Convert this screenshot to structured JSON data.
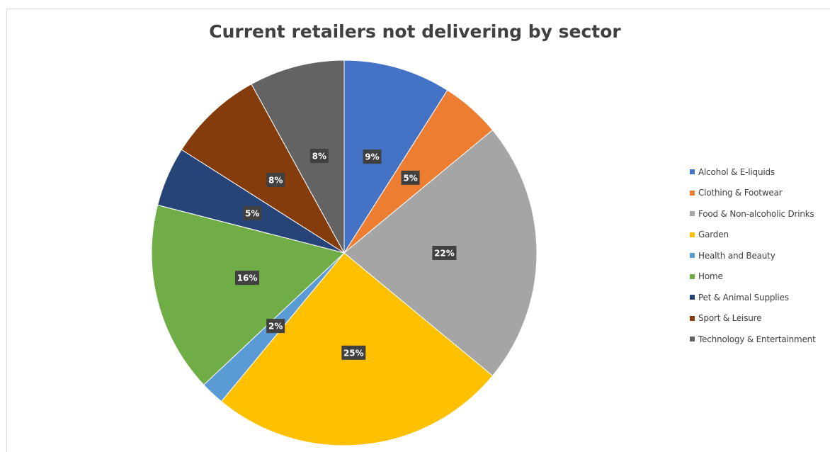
{
  "chart_data": {
    "type": "pie",
    "title": "Current retailers not delivering by sector",
    "legend_position": "right",
    "slices": [
      {
        "label": "Alcohol & E-liquids",
        "value": 9,
        "data_label": "9%",
        "color": "#4472C4"
      },
      {
        "label": "Clothing & Footwear",
        "value": 5,
        "data_label": "5%",
        "color": "#ED7D31"
      },
      {
        "label": "Food & Non-alcoholic Drinks",
        "value": 22,
        "data_label": "22%",
        "color": "#A5A5A5"
      },
      {
        "label": "Garden",
        "value": 25,
        "data_label": "25%",
        "color": "#FFC000"
      },
      {
        "label": "Health and Beauty",
        "value": 2,
        "data_label": "2%",
        "color": "#5B9BD5"
      },
      {
        "label": "Home",
        "value": 16,
        "data_label": "16%",
        "color": "#70AD47"
      },
      {
        "label": "Pet & Animal Supplies",
        "value": 5,
        "data_label": "5%",
        "color": "#264478"
      },
      {
        "label": "Sport & Leisure",
        "value": 8,
        "data_label": "8%",
        "color": "#843C0C"
      },
      {
        "label": "Technology & Entertainment",
        "value": 8,
        "data_label": "8%",
        "color": "#636363"
      }
    ]
  }
}
